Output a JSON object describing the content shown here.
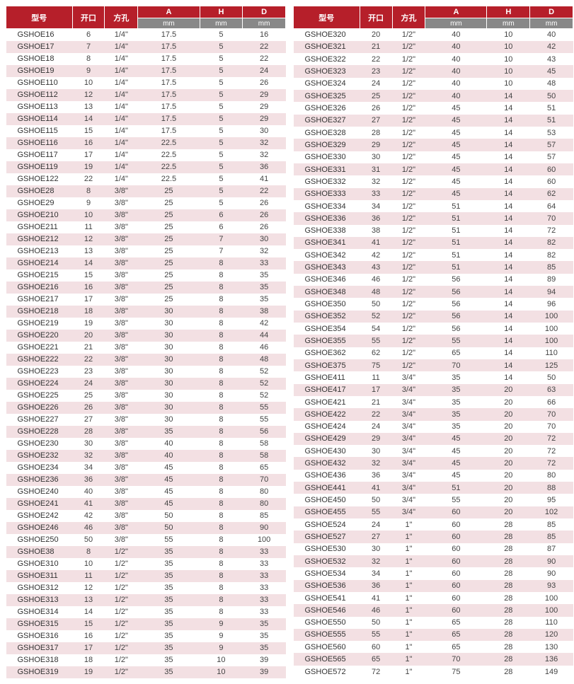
{
  "headers": {
    "model": "型号",
    "opening": "开口",
    "square": "方孔",
    "A": "A",
    "H": "H",
    "D": "D",
    "mm": "mm"
  },
  "left_rows": [
    [
      "GSHOE16",
      "6",
      "1/4\"",
      "17.5",
      "5",
      "16"
    ],
    [
      "GSHOE17",
      "7",
      "1/4\"",
      "17.5",
      "5",
      "22"
    ],
    [
      "GSHOE18",
      "8",
      "1/4\"",
      "17.5",
      "5",
      "22"
    ],
    [
      "GSHOE19",
      "9",
      "1/4\"",
      "17.5",
      "5",
      "24"
    ],
    [
      "GSHOE110",
      "10",
      "1/4\"",
      "17.5",
      "5",
      "26"
    ],
    [
      "GSHOE112",
      "12",
      "1/4\"",
      "17.5",
      "5",
      "29"
    ],
    [
      "GSHOE113",
      "13",
      "1/4\"",
      "17.5",
      "5",
      "29"
    ],
    [
      "GSHOE114",
      "14",
      "1/4\"",
      "17.5",
      "5",
      "29"
    ],
    [
      "GSHOE115",
      "15",
      "1/4\"",
      "17.5",
      "5",
      "30"
    ],
    [
      "GSHOE116",
      "16",
      "1/4\"",
      "22.5",
      "5",
      "32"
    ],
    [
      "GSHOE117",
      "17",
      "1/4\"",
      "22.5",
      "5",
      "32"
    ],
    [
      "GSHOE119",
      "19",
      "1/4\"",
      "22.5",
      "5",
      "36"
    ],
    [
      "GSHOE122",
      "22",
      "1/4\"",
      "22.5",
      "5",
      "41"
    ],
    [
      "GSHOE28",
      "8",
      "3/8\"",
      "25",
      "5",
      "22"
    ],
    [
      "GSHOE29",
      "9",
      "3/8\"",
      "25",
      "5",
      "26"
    ],
    [
      "GSHOE210",
      "10",
      "3/8\"",
      "25",
      "6",
      "26"
    ],
    [
      "GSHOE211",
      "11",
      "3/8\"",
      "25",
      "6",
      "26"
    ],
    [
      "GSHOE212",
      "12",
      "3/8\"",
      "25",
      "7",
      "30"
    ],
    [
      "GSHOE213",
      "13",
      "3/8\"",
      "25",
      "7",
      "32"
    ],
    [
      "GSHOE214",
      "14",
      "3/8\"",
      "25",
      "8",
      "33"
    ],
    [
      "GSHOE215",
      "15",
      "3/8\"",
      "25",
      "8",
      "35"
    ],
    [
      "GSHOE216",
      "16",
      "3/8\"",
      "25",
      "8",
      "35"
    ],
    [
      "GSHOE217",
      "17",
      "3/8\"",
      "25",
      "8",
      "35"
    ],
    [
      "GSHOE218",
      "18",
      "3/8\"",
      "30",
      "8",
      "38"
    ],
    [
      "GSHOE219",
      "19",
      "3/8\"",
      "30",
      "8",
      "42"
    ],
    [
      "GSHOE220",
      "20",
      "3/8\"",
      "30",
      "8",
      "44"
    ],
    [
      "GSHOE221",
      "21",
      "3/8\"",
      "30",
      "8",
      "46"
    ],
    [
      "GSHOE222",
      "22",
      "3/8\"",
      "30",
      "8",
      "48"
    ],
    [
      "GSHOE223",
      "23",
      "3/8\"",
      "30",
      "8",
      "52"
    ],
    [
      "GSHOE224",
      "24",
      "3/8\"",
      "30",
      "8",
      "52"
    ],
    [
      "GSHOE225",
      "25",
      "3/8\"",
      "30",
      "8",
      "52"
    ],
    [
      "GSHOE226",
      "26",
      "3/8\"",
      "30",
      "8",
      "55"
    ],
    [
      "GSHOE227",
      "27",
      "3/8\"",
      "30",
      "8",
      "55"
    ],
    [
      "GSHOE228",
      "28",
      "3/8\"",
      "35",
      "8",
      "56"
    ],
    [
      "GSHOE230",
      "30",
      "3/8\"",
      "40",
      "8",
      "58"
    ],
    [
      "GSHOE232",
      "32",
      "3/8\"",
      "40",
      "8",
      "58"
    ],
    [
      "GSHOE234",
      "34",
      "3/8\"",
      "45",
      "8",
      "65"
    ],
    [
      "GSHOE236",
      "36",
      "3/8\"",
      "45",
      "8",
      "70"
    ],
    [
      "GSHOE240",
      "40",
      "3/8\"",
      "45",
      "8",
      "80"
    ],
    [
      "GSHOE241",
      "41",
      "3/8\"",
      "45",
      "8",
      "80"
    ],
    [
      "GSHOE242",
      "42",
      "3/8\"",
      "50",
      "8",
      "85"
    ],
    [
      "GSHOE246",
      "46",
      "3/8\"",
      "50",
      "8",
      "90"
    ],
    [
      "GSHOE250",
      "50",
      "3/8\"",
      "55",
      "8",
      "100"
    ],
    [
      "GSHOE38",
      "8",
      "1/2\"",
      "35",
      "8",
      "33"
    ],
    [
      "GSHOE310",
      "10",
      "1/2\"",
      "35",
      "8",
      "33"
    ],
    [
      "GSHOE311",
      "11",
      "1/2\"",
      "35",
      "8",
      "33"
    ],
    [
      "GSHOE312",
      "12",
      "1/2\"",
      "35",
      "8",
      "33"
    ],
    [
      "GSHOE313",
      "13",
      "1/2\"",
      "35",
      "8",
      "33"
    ],
    [
      "GSHOE314",
      "14",
      "1/2\"",
      "35",
      "8",
      "33"
    ],
    [
      "GSHOE315",
      "15",
      "1/2\"",
      "35",
      "9",
      "35"
    ],
    [
      "GSHOE316",
      "16",
      "1/2\"",
      "35",
      "9",
      "35"
    ],
    [
      "GSHOE317",
      "17",
      "1/2\"",
      "35",
      "9",
      "35"
    ],
    [
      "GSHOE318",
      "18",
      "1/2\"",
      "35",
      "10",
      "39"
    ],
    [
      "GSHOE319",
      "19",
      "1/2\"",
      "35",
      "10",
      "39"
    ]
  ],
  "right_rows": [
    [
      "GSHOE320",
      "20",
      "1/2\"",
      "40",
      "10",
      "40"
    ],
    [
      "GSHOE321",
      "21",
      "1/2\"",
      "40",
      "10",
      "42"
    ],
    [
      "GSHOE322",
      "22",
      "1/2\"",
      "40",
      "10",
      "43"
    ],
    [
      "GSHOE323",
      "23",
      "1/2\"",
      "40",
      "10",
      "45"
    ],
    [
      "GSHOE324",
      "24",
      "1/2\"",
      "40",
      "10",
      "48"
    ],
    [
      "GSHOE325",
      "25",
      "1/2\"",
      "40",
      "14",
      "50"
    ],
    [
      "GSHOE326",
      "26",
      "1/2\"",
      "45",
      "14",
      "51"
    ],
    [
      "GSHOE327",
      "27",
      "1/2\"",
      "45",
      "14",
      "51"
    ],
    [
      "GSHOE328",
      "28",
      "1/2\"",
      "45",
      "14",
      "53"
    ],
    [
      "GSHOE329",
      "29",
      "1/2\"",
      "45",
      "14",
      "57"
    ],
    [
      "GSHOE330",
      "30",
      "1/2\"",
      "45",
      "14",
      "57"
    ],
    [
      "GSHOE331",
      "31",
      "1/2\"",
      "45",
      "14",
      "60"
    ],
    [
      "GSHOE332",
      "32",
      "1/2\"",
      "45",
      "14",
      "60"
    ],
    [
      "GSHOE333",
      "33",
      "1/2\"",
      "45",
      "14",
      "62"
    ],
    [
      "GSHOE334",
      "34",
      "1/2\"",
      "51",
      "14",
      "64"
    ],
    [
      "GSHOE336",
      "36",
      "1/2\"",
      "51",
      "14",
      "70"
    ],
    [
      "GSHOE338",
      "38",
      "1/2\"",
      "51",
      "14",
      "72"
    ],
    [
      "GSHOE341",
      "41",
      "1/2\"",
      "51",
      "14",
      "82"
    ],
    [
      "GSHOE342",
      "42",
      "1/2\"",
      "51",
      "14",
      "82"
    ],
    [
      "GSHOE343",
      "43",
      "1/2\"",
      "51",
      "14",
      "85"
    ],
    [
      "GSHOE346",
      "46",
      "1/2\"",
      "56",
      "14",
      "89"
    ],
    [
      "GSHOE348",
      "48",
      "1/2\"",
      "56",
      "14",
      "94"
    ],
    [
      "GSHOE350",
      "50",
      "1/2\"",
      "56",
      "14",
      "96"
    ],
    [
      "GSHOE352",
      "52",
      "1/2\"",
      "56",
      "14",
      "100"
    ],
    [
      "GSHOE354",
      "54",
      "1/2\"",
      "56",
      "14",
      "100"
    ],
    [
      "GSHOE355",
      "55",
      "1/2\"",
      "55",
      "14",
      "100"
    ],
    [
      "GSHOE362",
      "62",
      "1/2\"",
      "65",
      "14",
      "110"
    ],
    [
      "GSHOE375",
      "75",
      "1/2\"",
      "70",
      "14",
      "125"
    ],
    [
      "GSHOE411",
      "11",
      "3/4\"",
      "35",
      "14",
      "50"
    ],
    [
      "GSHOE417",
      "17",
      "3/4\"",
      "35",
      "20",
      "63"
    ],
    [
      "GSHOE421",
      "21",
      "3/4\"",
      "35",
      "20",
      "66"
    ],
    [
      "GSHOE422",
      "22",
      "3/4\"",
      "35",
      "20",
      "70"
    ],
    [
      "GSHOE424",
      "24",
      "3/4\"",
      "35",
      "20",
      "70"
    ],
    [
      "GSHOE429",
      "29",
      "3/4\"",
      "45",
      "20",
      "72"
    ],
    [
      "GSHOE430",
      "30",
      "3/4\"",
      "45",
      "20",
      "72"
    ],
    [
      "GSHOE432",
      "32",
      "3/4\"",
      "45",
      "20",
      "72"
    ],
    [
      "GSHOE436",
      "36",
      "3/4\"",
      "45",
      "20",
      "80"
    ],
    [
      "GSHOE441",
      "41",
      "3/4\"",
      "51",
      "20",
      "88"
    ],
    [
      "GSHOE450",
      "50",
      "3/4\"",
      "55",
      "20",
      "95"
    ],
    [
      "GSHOE455",
      "55",
      "3/4\"",
      "60",
      "20",
      "102"
    ],
    [
      "GSHOE524",
      "24",
      "1\"",
      "60",
      "28",
      "85"
    ],
    [
      "GSHOE527",
      "27",
      "1\"",
      "60",
      "28",
      "85"
    ],
    [
      "GSHOE530",
      "30",
      "1\"",
      "60",
      "28",
      "87"
    ],
    [
      "GSHOE532",
      "32",
      "1\"",
      "60",
      "28",
      "90"
    ],
    [
      "GSHOE534",
      "34",
      "1\"",
      "60",
      "28",
      "90"
    ],
    [
      "GSHOE536",
      "36",
      "1\"",
      "60",
      "28",
      "93"
    ],
    [
      "GSHOE541",
      "41",
      "1\"",
      "60",
      "28",
      "100"
    ],
    [
      "GSHOE546",
      "46",
      "1\"",
      "60",
      "28",
      "100"
    ],
    [
      "GSHOE550",
      "50",
      "1\"",
      "65",
      "28",
      "110"
    ],
    [
      "GSHOE555",
      "55",
      "1\"",
      "65",
      "28",
      "120"
    ],
    [
      "GSHOE560",
      "60",
      "1\"",
      "65",
      "28",
      "130"
    ],
    [
      "GSHOE565",
      "65",
      "1\"",
      "70",
      "28",
      "136"
    ],
    [
      "GSHOE572",
      "72",
      "1\"",
      "75",
      "28",
      "149"
    ]
  ]
}
